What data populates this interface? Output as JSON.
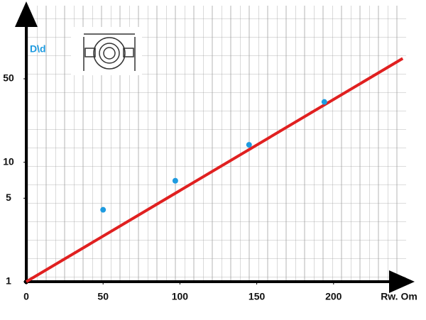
{
  "chart_data": {
    "type": "line",
    "y_label": "D\\d",
    "x_label": "Rw. Om",
    "log_y": true,
    "xlim": [
      0,
      250
    ],
    "ylim": [
      1,
      186
    ],
    "xticks": [
      0,
      50,
      100,
      150,
      200
    ],
    "yticks": [
      1,
      5,
      10,
      50
    ],
    "series": [
      {
        "color": "#e02020",
        "x": [
          0,
          245
        ],
        "values": [
          1,
          74
        ],
        "marker": false
      },
      {
        "color": "#1e9be0",
        "x": [
          50,
          97,
          145,
          194
        ],
        "values": [
          4,
          7,
          14,
          32
        ],
        "marker": true,
        "line": false
      }
    ]
  }
}
